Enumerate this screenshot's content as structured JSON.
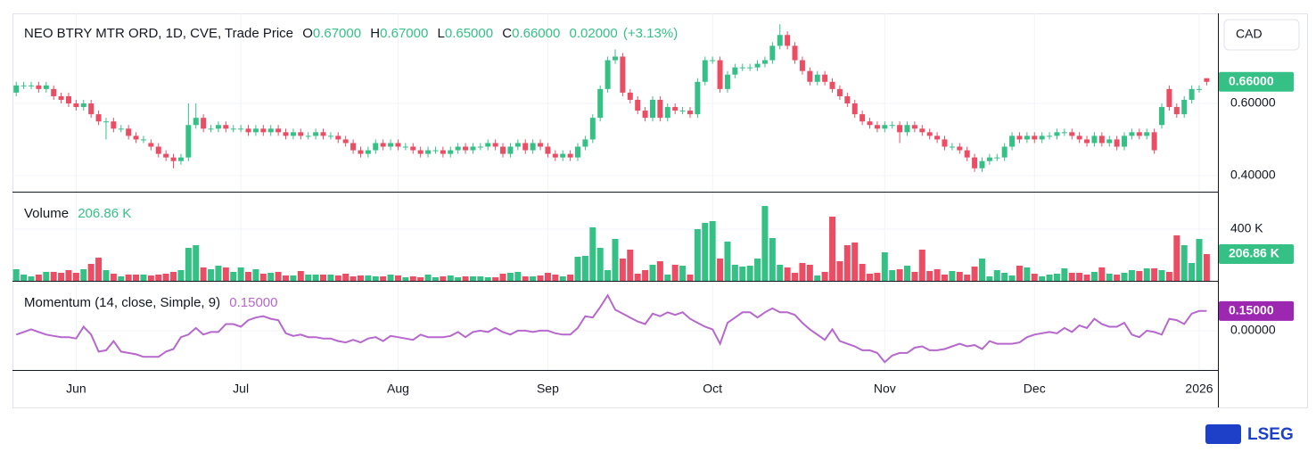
{
  "chart_data": {
    "type": "candlestick",
    "title": "NEO BTRY MTR ORD, 1D, CVE, Trade Price",
    "ohlc": [
      {
        "name": "O",
        "value": 0.67,
        "label": "0.67000"
      },
      {
        "name": "H",
        "value": 0.67,
        "label": "0.67000"
      },
      {
        "name": "L",
        "value": 0.65,
        "label": "0.65000"
      },
      {
        "name": "C",
        "value": 0.66,
        "label": "0.66000"
      }
    ],
    "change": {
      "value": 0.02,
      "label": "0.02000"
    },
    "change_pct": {
      "value": 3.13,
      "label": "(+3.13%)"
    },
    "currency": "CAD",
    "brand": "LSEG",
    "up_color": "#35c186",
    "down_color": "#ea4d64",
    "xlim": [
      -0.5,
      160.5
    ],
    "xticks": [
      {
        "value": 8,
        "label": "Jun"
      },
      {
        "value": 30,
        "label": "Jul"
      },
      {
        "value": 51,
        "label": "Aug"
      },
      {
        "value": 71,
        "label": "Sep"
      },
      {
        "value": 93,
        "label": "Oct"
      },
      {
        "value": 116,
        "label": "Nov"
      },
      {
        "value": 136,
        "label": "Dec"
      },
      {
        "value": 158,
        "label": "2026"
      }
    ],
    "ylim": [
      0.355,
      0.85
    ],
    "yticks": [
      {
        "value": 0.4,
        "label": "0.40000"
      },
      {
        "value": 0.6,
        "label": "0.60000"
      }
    ],
    "grid": true,
    "candles": [
      [
        0.63,
        0.66,
        0.62,
        0.65
      ],
      [
        0.65,
        0.66,
        0.64,
        0.65
      ],
      [
        0.65,
        0.66,
        0.64,
        0.65
      ],
      [
        0.65,
        0.66,
        0.63,
        0.64
      ],
      [
        0.64,
        0.66,
        0.63,
        0.65
      ],
      [
        0.64,
        0.65,
        0.61,
        0.62
      ],
      [
        0.62,
        0.63,
        0.6,
        0.61
      ],
      [
        0.62,
        0.63,
        0.59,
        0.6
      ],
      [
        0.6,
        0.61,
        0.58,
        0.59
      ],
      [
        0.59,
        0.61,
        0.58,
        0.6
      ],
      [
        0.6,
        0.61,
        0.56,
        0.57
      ],
      [
        0.57,
        0.58,
        0.54,
        0.55
      ],
      [
        0.55,
        0.56,
        0.5,
        0.55
      ],
      [
        0.55,
        0.56,
        0.52,
        0.53
      ],
      [
        0.53,
        0.54,
        0.52,
        0.53
      ],
      [
        0.53,
        0.54,
        0.5,
        0.51
      ],
      [
        0.51,
        0.52,
        0.49,
        0.5
      ],
      [
        0.5,
        0.51,
        0.49,
        0.5
      ],
      [
        0.49,
        0.5,
        0.47,
        0.48
      ],
      [
        0.48,
        0.49,
        0.45,
        0.46
      ],
      [
        0.46,
        0.47,
        0.44,
        0.45
      ],
      [
        0.45,
        0.46,
        0.42,
        0.44
      ],
      [
        0.44,
        0.46,
        0.43,
        0.45
      ],
      [
        0.45,
        0.6,
        0.44,
        0.54
      ],
      [
        0.54,
        0.6,
        0.53,
        0.56
      ],
      [
        0.56,
        0.57,
        0.52,
        0.53
      ],
      [
        0.53,
        0.54,
        0.52,
        0.53
      ],
      [
        0.53,
        0.55,
        0.52,
        0.54
      ],
      [
        0.54,
        0.55,
        0.52,
        0.53
      ],
      [
        0.53,
        0.54,
        0.52,
        0.53
      ],
      [
        0.53,
        0.54,
        0.52,
        0.53
      ],
      [
        0.53,
        0.54,
        0.51,
        0.52
      ],
      [
        0.52,
        0.54,
        0.51,
        0.53
      ],
      [
        0.53,
        0.54,
        0.51,
        0.52
      ],
      [
        0.52,
        0.54,
        0.51,
        0.53
      ],
      [
        0.53,
        0.54,
        0.51,
        0.52
      ],
      [
        0.52,
        0.53,
        0.5,
        0.51
      ],
      [
        0.51,
        0.53,
        0.5,
        0.52
      ],
      [
        0.52,
        0.53,
        0.5,
        0.51
      ],
      [
        0.51,
        0.52,
        0.5,
        0.51
      ],
      [
        0.51,
        0.53,
        0.5,
        0.52
      ],
      [
        0.52,
        0.53,
        0.5,
        0.51
      ],
      [
        0.51,
        0.52,
        0.5,
        0.51
      ],
      [
        0.51,
        0.52,
        0.49,
        0.5
      ],
      [
        0.5,
        0.51,
        0.48,
        0.49
      ],
      [
        0.49,
        0.5,
        0.46,
        0.47
      ],
      [
        0.47,
        0.48,
        0.45,
        0.46
      ],
      [
        0.46,
        0.48,
        0.45,
        0.47
      ],
      [
        0.47,
        0.5,
        0.46,
        0.49
      ],
      [
        0.49,
        0.5,
        0.47,
        0.48
      ],
      [
        0.48,
        0.5,
        0.47,
        0.49
      ],
      [
        0.49,
        0.5,
        0.47,
        0.48
      ],
      [
        0.48,
        0.49,
        0.47,
        0.48
      ],
      [
        0.48,
        0.49,
        0.46,
        0.47
      ],
      [
        0.47,
        0.48,
        0.45,
        0.46
      ],
      [
        0.46,
        0.48,
        0.45,
        0.47
      ],
      [
        0.47,
        0.48,
        0.46,
        0.47
      ],
      [
        0.47,
        0.48,
        0.45,
        0.46
      ],
      [
        0.46,
        0.48,
        0.45,
        0.47
      ],
      [
        0.47,
        0.49,
        0.46,
        0.48
      ],
      [
        0.48,
        0.49,
        0.46,
        0.47
      ],
      [
        0.47,
        0.49,
        0.46,
        0.48
      ],
      [
        0.48,
        0.49,
        0.47,
        0.48
      ],
      [
        0.48,
        0.5,
        0.47,
        0.49
      ],
      [
        0.49,
        0.5,
        0.47,
        0.48
      ],
      [
        0.48,
        0.49,
        0.45,
        0.46
      ],
      [
        0.46,
        0.49,
        0.45,
        0.48
      ],
      [
        0.48,
        0.5,
        0.47,
        0.49
      ],
      [
        0.49,
        0.5,
        0.46,
        0.47
      ],
      [
        0.47,
        0.5,
        0.46,
        0.49
      ],
      [
        0.49,
        0.5,
        0.47,
        0.48
      ],
      [
        0.48,
        0.49,
        0.45,
        0.46
      ],
      [
        0.46,
        0.47,
        0.44,
        0.45
      ],
      [
        0.45,
        0.47,
        0.44,
        0.46
      ],
      [
        0.46,
        0.47,
        0.44,
        0.45
      ],
      [
        0.45,
        0.49,
        0.44,
        0.48
      ],
      [
        0.48,
        0.51,
        0.47,
        0.5
      ],
      [
        0.5,
        0.57,
        0.49,
        0.56
      ],
      [
        0.56,
        0.65,
        0.55,
        0.64
      ],
      [
        0.64,
        0.73,
        0.63,
        0.72
      ],
      [
        0.72,
        0.75,
        0.71,
        0.73
      ],
      [
        0.73,
        0.74,
        0.62,
        0.63
      ],
      [
        0.63,
        0.64,
        0.6,
        0.61
      ],
      [
        0.61,
        0.62,
        0.57,
        0.58
      ],
      [
        0.58,
        0.59,
        0.55,
        0.56
      ],
      [
        0.56,
        0.62,
        0.55,
        0.61
      ],
      [
        0.61,
        0.62,
        0.55,
        0.56
      ],
      [
        0.56,
        0.6,
        0.55,
        0.59
      ],
      [
        0.59,
        0.6,
        0.57,
        0.58
      ],
      [
        0.58,
        0.59,
        0.57,
        0.58
      ],
      [
        0.58,
        0.59,
        0.56,
        0.57
      ],
      [
        0.57,
        0.67,
        0.56,
        0.66
      ],
      [
        0.66,
        0.73,
        0.65,
        0.72
      ],
      [
        0.72,
        0.73,
        0.71,
        0.72
      ],
      [
        0.72,
        0.73,
        0.63,
        0.64
      ],
      [
        0.64,
        0.69,
        0.63,
        0.68
      ],
      [
        0.68,
        0.71,
        0.67,
        0.7
      ],
      [
        0.7,
        0.71,
        0.69,
        0.7
      ],
      [
        0.7,
        0.71,
        0.69,
        0.7
      ],
      [
        0.7,
        0.72,
        0.69,
        0.71
      ],
      [
        0.71,
        0.73,
        0.7,
        0.72
      ],
      [
        0.72,
        0.77,
        0.71,
        0.76
      ],
      [
        0.76,
        0.82,
        0.75,
        0.79
      ],
      [
        0.79,
        0.8,
        0.75,
        0.76
      ],
      [
        0.76,
        0.77,
        0.71,
        0.72
      ],
      [
        0.72,
        0.73,
        0.68,
        0.69
      ],
      [
        0.69,
        0.7,
        0.65,
        0.66
      ],
      [
        0.66,
        0.69,
        0.65,
        0.68
      ],
      [
        0.68,
        0.69,
        0.65,
        0.66
      ],
      [
        0.66,
        0.67,
        0.63,
        0.64
      ],
      [
        0.64,
        0.65,
        0.61,
        0.62
      ],
      [
        0.62,
        0.63,
        0.59,
        0.6
      ],
      [
        0.6,
        0.61,
        0.56,
        0.57
      ],
      [
        0.57,
        0.58,
        0.54,
        0.55
      ],
      [
        0.55,
        0.56,
        0.53,
        0.54
      ],
      [
        0.54,
        0.55,
        0.52,
        0.53
      ],
      [
        0.53,
        0.55,
        0.52,
        0.54
      ],
      [
        0.54,
        0.55,
        0.53,
        0.54
      ],
      [
        0.54,
        0.55,
        0.49,
        0.52
      ],
      [
        0.52,
        0.55,
        0.51,
        0.54
      ],
      [
        0.54,
        0.55,
        0.52,
        0.53
      ],
      [
        0.53,
        0.54,
        0.51,
        0.52
      ],
      [
        0.52,
        0.53,
        0.5,
        0.51
      ],
      [
        0.51,
        0.52,
        0.49,
        0.5
      ],
      [
        0.5,
        0.51,
        0.47,
        0.48
      ],
      [
        0.48,
        0.49,
        0.47,
        0.48
      ],
      [
        0.48,
        0.49,
        0.46,
        0.47
      ],
      [
        0.47,
        0.48,
        0.44,
        0.45
      ],
      [
        0.45,
        0.46,
        0.41,
        0.42
      ],
      [
        0.42,
        0.45,
        0.41,
        0.44
      ],
      [
        0.44,
        0.46,
        0.43,
        0.45
      ],
      [
        0.45,
        0.46,
        0.44,
        0.45
      ],
      [
        0.45,
        0.49,
        0.44,
        0.48
      ],
      [
        0.48,
        0.52,
        0.47,
        0.51
      ],
      [
        0.51,
        0.52,
        0.49,
        0.5
      ],
      [
        0.5,
        0.52,
        0.49,
        0.51
      ],
      [
        0.51,
        0.52,
        0.49,
        0.5
      ],
      [
        0.5,
        0.52,
        0.49,
        0.51
      ],
      [
        0.51,
        0.52,
        0.5,
        0.51
      ],
      [
        0.51,
        0.53,
        0.5,
        0.52
      ],
      [
        0.52,
        0.53,
        0.51,
        0.52
      ],
      [
        0.52,
        0.53,
        0.5,
        0.51
      ],
      [
        0.51,
        0.52,
        0.49,
        0.5
      ],
      [
        0.5,
        0.51,
        0.48,
        0.49
      ],
      [
        0.49,
        0.52,
        0.48,
        0.51
      ],
      [
        0.51,
        0.52,
        0.48,
        0.49
      ],
      [
        0.49,
        0.51,
        0.48,
        0.5
      ],
      [
        0.5,
        0.51,
        0.47,
        0.48
      ],
      [
        0.48,
        0.52,
        0.47,
        0.51
      ],
      [
        0.51,
        0.53,
        0.5,
        0.52
      ],
      [
        0.52,
        0.53,
        0.5,
        0.51
      ],
      [
        0.51,
        0.53,
        0.5,
        0.52
      ],
      [
        0.52,
        0.53,
        0.46,
        0.47
      ],
      [
        0.54,
        0.6,
        0.53,
        0.59
      ],
      [
        0.64,
        0.65,
        0.58,
        0.59
      ],
      [
        0.59,
        0.6,
        0.56,
        0.57
      ],
      [
        0.57,
        0.62,
        0.56,
        0.61
      ],
      [
        0.61,
        0.65,
        0.6,
        0.64
      ],
      [
        0.64,
        0.65,
        0.63,
        0.64
      ],
      [
        0.67,
        0.67,
        0.65,
        0.66
      ]
    ],
    "volume": {
      "name": "Volume",
      "last_label": "206.86 K",
      "ylim": [
        0,
        690000
      ],
      "yticks": [
        {
          "value": 400000,
          "label": "400 K"
        }
      ],
      "values": [
        89700,
        48300,
        34500,
        48300,
        69000,
        69000,
        62100,
        82800,
        62100,
        89700,
        131000,
        179300,
        82800,
        55200,
        34500,
        48300,
        48300,
        48300,
        41400,
        48300,
        55200,
        69000,
        82800,
        255200,
        275900,
        103500,
        89700,
        117200,
        103500,
        69000,
        103500,
        69000,
        89700,
        55200,
        62100,
        69000,
        41400,
        41400,
        75900,
        48300,
        48300,
        48300,
        48300,
        41400,
        55200,
        34500,
        41400,
        41400,
        34500,
        34500,
        48300,
        41400,
        27600,
        34500,
        27600,
        48300,
        27600,
        34500,
        41400,
        27600,
        34500,
        34500,
        34500,
        27600,
        27600,
        55200,
        62100,
        69000,
        34500,
        34500,
        41400,
        62100,
        48300,
        34500,
        48300,
        186200,
        193100,
        413800,
        255200,
        82800,
        324200,
        172400,
        241400,
        55200,
        82800,
        124100,
        151700,
        48300,
        124100,
        117200,
        48300,
        400000,
        448300,
        462100,
        172400,
        303400,
        124100,
        110300,
        117200,
        172400,
        579300,
        331000,
        124100,
        103500,
        62100,
        137900,
        124100,
        41400,
        69000,
        496600,
        151700,
        275900,
        296600,
        131000,
        55200,
        62100,
        220700,
        82800,
        89700,
        117200,
        69000,
        241400,
        75900,
        89700,
        48300,
        75900,
        69000,
        48300,
        110300,
        172400,
        34500,
        82800,
        62100,
        41400,
        117200,
        103500,
        55200,
        34500,
        48300,
        55200,
        96600,
        62100,
        62100,
        48300,
        69000,
        103500,
        55200,
        48300,
        62100,
        82800,
        75900,
        96600,
        96600,
        82800,
        69000,
        351700,
        275900,
        137900,
        324200,
        206860
      ]
    },
    "momentum": {
      "name": "Momentum (14, close, Simple, 9)",
      "last_label": "0.15000",
      "color": "#b668cc",
      "tag_color": "#9c27b0",
      "ylim": [
        -0.3,
        0.38
      ],
      "yticks": [
        {
          "value": 0,
          "label": "0.00000"
        }
      ],
      "values": [
        -0.03,
        -0.01,
        0.01,
        -0.01,
        -0.03,
        -0.04,
        -0.05,
        -0.05,
        -0.06,
        0.03,
        -0.03,
        -0.16,
        -0.15,
        -0.08,
        -0.16,
        -0.17,
        -0.18,
        -0.2,
        -0.2,
        -0.2,
        -0.16,
        -0.14,
        -0.05,
        -0.03,
        0.02,
        -0.03,
        -0.01,
        -0.01,
        0.05,
        0.05,
        0.03,
        0.08,
        0.1,
        0.11,
        0.09,
        0.08,
        -0.02,
        -0.04,
        -0.03,
        -0.05,
        -0.05,
        -0.06,
        -0.06,
        -0.08,
        -0.09,
        -0.07,
        -0.09,
        -0.06,
        -0.05,
        -0.08,
        -0.04,
        -0.05,
        -0.06,
        -0.07,
        -0.03,
        -0.05,
        -0.05,
        -0.05,
        -0.04,
        -0.01,
        -0.05,
        -0.01,
        0,
        -0.01,
        0.02,
        -0.01,
        -0.03,
        0,
        0,
        -0.01,
        0,
        0,
        -0.02,
        -0.03,
        -0.03,
        0.02,
        0.11,
        0.1,
        0.18,
        0.27,
        0.16,
        0.13,
        0.1,
        0.07,
        0.05,
        0.13,
        0.11,
        0.14,
        0.12,
        0.14,
        0.09,
        0.06,
        0.03,
        0.01,
        -0.1,
        0.06,
        0.1,
        0.14,
        0.14,
        0.1,
        0.14,
        0.17,
        0.14,
        0.14,
        0.12,
        0.06,
        0.01,
        -0.03,
        -0.07,
        0.01,
        -0.08,
        -0.1,
        -0.12,
        -0.15,
        -0.15,
        -0.17,
        -0.24,
        -0.19,
        -0.17,
        -0.17,
        -0.13,
        -0.12,
        -0.15,
        -0.15,
        -0.14,
        -0.12,
        -0.1,
        -0.12,
        -0.11,
        -0.14,
        -0.08,
        -0.1,
        -0.1,
        -0.1,
        -0.09,
        -0.05,
        -0.03,
        -0.02,
        -0.01,
        -0.02,
        0.02,
        -0.01,
        0.04,
        0.02,
        0.09,
        0.05,
        0.03,
        0.03,
        0.06,
        -0.03,
        -0.05,
        0,
        -0.01,
        -0.03,
        0.09,
        0.08,
        0.05,
        0.13,
        0.15,
        0.15
      ]
    }
  }
}
